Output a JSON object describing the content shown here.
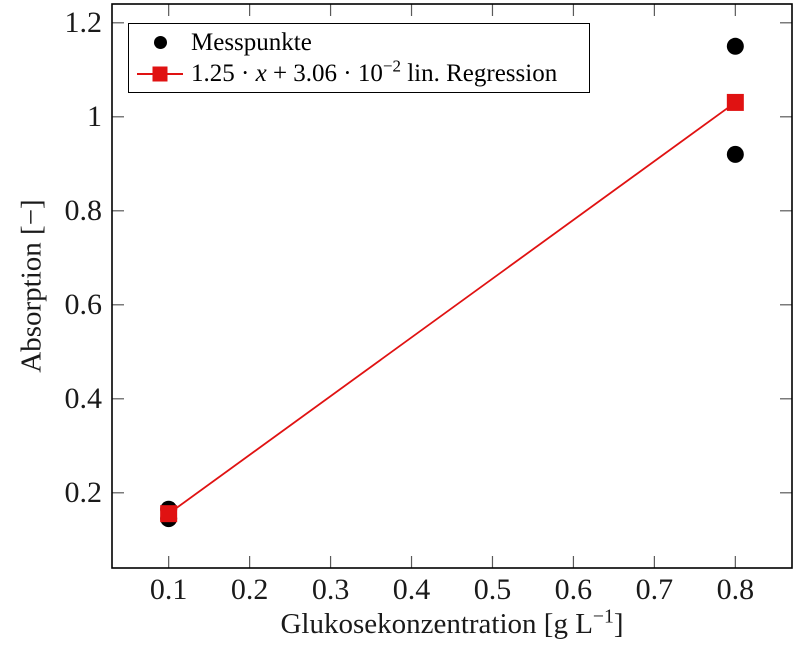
{
  "chart_data": {
    "type": "scatter",
    "title": "",
    "xlabel": "Glukosekonzentration [g L−1]",
    "xlabel_parts": {
      "pre": "Glukosekonzentration [g L",
      "sup": "−1",
      "post": "]"
    },
    "ylabel": "Absorption [−]",
    "xlim": [
      0.03,
      0.87
    ],
    "ylim": [
      0.04,
      1.24
    ],
    "xticks": [
      0.1,
      0.2,
      0.3,
      0.4,
      0.5,
      0.6,
      0.7,
      0.8
    ],
    "yticks": [
      0.2,
      0.4,
      0.6,
      0.8,
      1.0,
      1.2
    ],
    "grid": false,
    "legend_position": "top-left",
    "series": [
      {
        "name": "Messpunkte",
        "type": "scatter",
        "marker": "circle",
        "marker_size": 17,
        "color": "#000000",
        "points": [
          [
            0.1,
            0.165
          ],
          [
            0.1,
            0.145
          ],
          [
            0.8,
            1.15
          ],
          [
            0.8,
            0.92
          ]
        ]
      },
      {
        "name": "1.25 · x + 3.06 · 10−2 lin. Regression",
        "type": "line",
        "marker": "square",
        "marker_size": 17,
        "color": "#e01212",
        "slope": 1.25,
        "intercept": 0.0306,
        "points": [
          [
            0.1,
            0.1556
          ],
          [
            0.8,
            1.0306
          ]
        ]
      }
    ]
  },
  "legend": {
    "items": [
      {
        "label": "Messpunkte"
      },
      {
        "parts": {
          "pre": "1.25 · ",
          "x": "x",
          "mid": " + 3.06 · 10",
          "sup": "−2",
          "post": " lin. Regression"
        }
      }
    ]
  },
  "colors": {
    "measurement_points": "#000000",
    "regression": "#e01212",
    "axis_frame": "#000000",
    "ticks": "#5a5a5a",
    "background": "#ffffff"
  }
}
